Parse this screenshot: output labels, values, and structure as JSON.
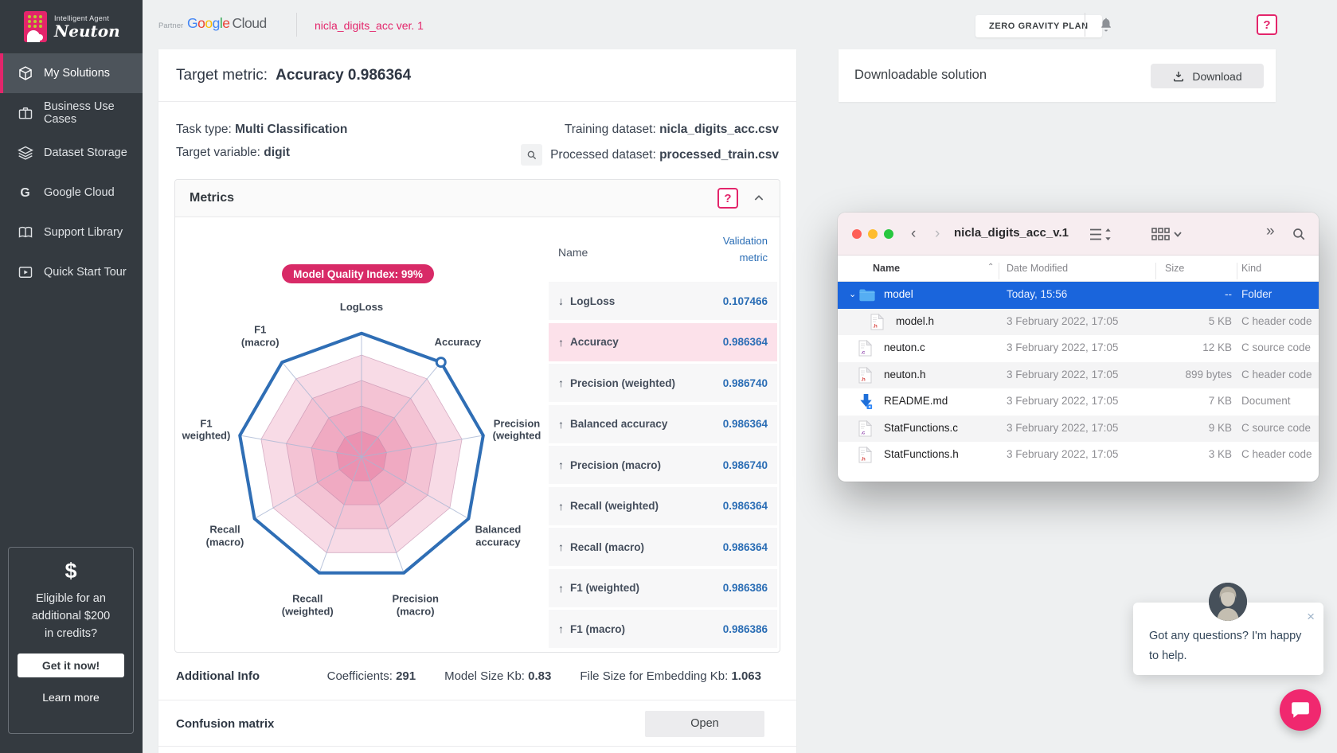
{
  "brand": {
    "tagline": "Intelligent Agent",
    "name": "Neuton"
  },
  "colors": {
    "accent": "#e3256b",
    "metric_blue": "#2a6db5",
    "selection_blue": "#1a65dc",
    "badge_pink": "#d82a67",
    "radar_line": "#2f6eb5"
  },
  "sidebar": {
    "items": [
      {
        "label": "My Solutions",
        "icon": "cube-icon",
        "active": true
      },
      {
        "label": "Business Use Cases",
        "icon": "briefcase-icon",
        "active": false
      },
      {
        "label": "Dataset Storage",
        "icon": "layers-icon",
        "active": false
      },
      {
        "label": "Google Cloud",
        "icon": "g-letter-icon",
        "active": false
      },
      {
        "label": "Support Library",
        "icon": "book-icon",
        "active": false
      },
      {
        "label": "Quick Start Tour",
        "icon": "play-icon",
        "active": false
      }
    ],
    "promo": {
      "icon": "dollar-icon",
      "text_lines": [
        "Eligible for an",
        "additional $200",
        "in credits?"
      ],
      "button": "Get it now!",
      "link": "Learn more"
    }
  },
  "topbar": {
    "partner_label": "Partner",
    "google_letters": [
      {
        "ch": "G",
        "color": "#4285F4"
      },
      {
        "ch": "o",
        "color": "#EA4335"
      },
      {
        "ch": "o",
        "color": "#FBBC05"
      },
      {
        "ch": "g",
        "color": "#4285F4"
      },
      {
        "ch": "l",
        "color": "#34A853"
      },
      {
        "ch": "e",
        "color": "#EA4335"
      }
    ],
    "cloud_word": "Cloud",
    "project": "nicla_digits_acc ver. 1",
    "plan_button": "ZERO GRAVITY PLAN",
    "help_button": "?"
  },
  "main": {
    "target_metric_label": "Target metric:",
    "target_metric_value": "Accuracy 0.986364",
    "task_type_label": "Task type:",
    "task_type_value": "Multi Classification",
    "target_variable_label": "Target variable:",
    "target_variable_value": "digit",
    "training_label": "Training dataset:",
    "training_value": "nicla_digits_acc.csv",
    "processed_label": "Processed dataset:",
    "processed_value": "processed_train.csv",
    "metrics_title": "Metrics",
    "metrics_help": "?",
    "additional_info_label": "Additional Info",
    "additional_stats": [
      {
        "label": "Coefficients:",
        "value": "291"
      },
      {
        "label": "Model Size Kb:",
        "value": "0.83"
      },
      {
        "label": "File Size for Embedding Kb:",
        "value": "1.063"
      }
    ],
    "confusion_label": "Confusion matrix",
    "confusion_button": "Open"
  },
  "metrics_table": {
    "name_header": "Name",
    "value_header_lines": [
      "Validation",
      "metric"
    ],
    "rows": [
      {
        "direction": "down",
        "name": "LogLoss",
        "value": "0.107466",
        "highlight": false
      },
      {
        "direction": "up",
        "name": "Accuracy",
        "value": "0.986364",
        "highlight": true
      },
      {
        "direction": "up",
        "name": "Precision (weighted)",
        "value": "0.986740",
        "highlight": false
      },
      {
        "direction": "up",
        "name": "Balanced accuracy",
        "value": "0.986364",
        "highlight": false
      },
      {
        "direction": "up",
        "name": "Precision (macro)",
        "value": "0.986740",
        "highlight": false
      },
      {
        "direction": "up",
        "name": "Recall (weighted)",
        "value": "0.986364",
        "highlight": false
      },
      {
        "direction": "up",
        "name": "Recall (macro)",
        "value": "0.986364",
        "highlight": false
      },
      {
        "direction": "up",
        "name": "F1 (weighted)",
        "value": "0.986386",
        "highlight": false
      },
      {
        "direction": "up",
        "name": "F1 (macro)",
        "value": "0.986386",
        "highlight": false
      }
    ]
  },
  "chart_data": {
    "type": "radar",
    "badge": "Model Quality Index: 99%",
    "axes": [
      [
        "LogLoss"
      ],
      [
        "Accuracy"
      ],
      [
        "Precision",
        "(weighted"
      ],
      [
        "Balanced",
        "accuracy"
      ],
      [
        "Precision",
        "(macro)"
      ],
      [
        "Recall",
        "(weighted)"
      ],
      [
        "Recall",
        "(macro)"
      ],
      [
        "F1",
        "weighted)"
      ],
      [
        "F1",
        "(macro)"
      ]
    ],
    "series": [
      {
        "name": "Validation",
        "values": [
          0.97,
          0.97,
          0.97,
          0.97,
          0.97,
          0.97,
          0.97,
          0.97,
          0.97
        ]
      }
    ],
    "marker_axis_index": 1,
    "scale_max": 1,
    "rings": [
      {
        "radius": 0.8,
        "fill": "#f8dbe6"
      },
      {
        "radius": 0.6,
        "fill": "#f4c3d4"
      },
      {
        "radius": 0.4,
        "fill": "#f0aac2"
      },
      {
        "radius": 0.2,
        "fill": "#eb92b1"
      }
    ],
    "grid_on": true,
    "legend": "none"
  },
  "download_card": {
    "title": "Downloadable solution",
    "button": "Download"
  },
  "finder": {
    "window_title": "nicla_digits_acc_v.1",
    "columns": [
      "Name",
      "Date Modified",
      "Size",
      "Kind"
    ],
    "rows": [
      {
        "name": "model",
        "date": "Today, 15:56",
        "size": "--",
        "kind": "Folder",
        "icon": "folder-icon",
        "selected": true,
        "expanded": true,
        "indent": 0
      },
      {
        "name": "model.h",
        "date": "3 February 2022, 17:05",
        "size": "5 KB",
        "kind": "C header code",
        "icon": "file-h-icon",
        "selected": false,
        "indent": 1
      },
      {
        "name": "neuton.c",
        "date": "3 February 2022, 17:05",
        "size": "12 KB",
        "kind": "C source code",
        "icon": "file-c-icon",
        "selected": false,
        "indent": 0
      },
      {
        "name": "neuton.h",
        "date": "3 February 2022, 17:05",
        "size": "899 bytes",
        "kind": "C header code",
        "icon": "file-h-icon",
        "selected": false,
        "indent": 0
      },
      {
        "name": "README.md",
        "date": "3 February 2022, 17:05",
        "size": "7 KB",
        "kind": "Document",
        "icon": "download-file-icon",
        "selected": false,
        "indent": 0
      },
      {
        "name": "StatFunctions.c",
        "date": "3 February 2022, 17:05",
        "size": "9 KB",
        "kind": "C source code",
        "icon": "file-c-icon",
        "selected": false,
        "indent": 0
      },
      {
        "name": "StatFunctions.h",
        "date": "3 February 2022, 17:05",
        "size": "3 KB",
        "kind": "C header code",
        "icon": "file-h-icon",
        "selected": false,
        "indent": 0
      }
    ]
  },
  "chat": {
    "message": "Got any questions? I'm happy to help.",
    "close": "×"
  }
}
